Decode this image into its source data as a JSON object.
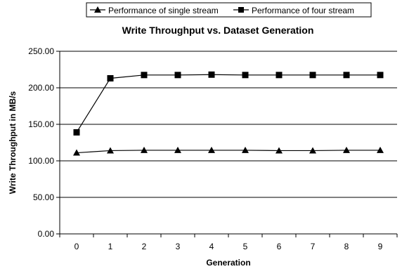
{
  "chart_data": {
    "type": "line",
    "title": "Write Throughput vs. Dataset Generation",
    "xlabel": "Generation",
    "ylabel": "Write Throughput in MB/s",
    "x": [
      0,
      1,
      2,
      3,
      4,
      5,
      6,
      7,
      8,
      9
    ],
    "x_tick_labels": [
      "0",
      "1",
      "2",
      "3",
      "4",
      "5",
      "6",
      "7",
      "8",
      "9"
    ],
    "ylim": [
      0,
      250
    ],
    "y_ticks": [
      0,
      50,
      100,
      150,
      200,
      250
    ],
    "y_tick_labels": [
      "0.00",
      "50.00",
      "100.00",
      "150.00",
      "200.00",
      "250.00"
    ],
    "grid": true,
    "legend_position": "top-center",
    "series": [
      {
        "name": "Performance of single stream",
        "marker": "triangle",
        "color": "#000000",
        "values": [
          111,
          114,
          114.5,
          114.5,
          114.5,
          114.5,
          114,
          114,
          114.5,
          114.5
        ]
      },
      {
        "name": "Performance of four stream",
        "marker": "square",
        "color": "#000000",
        "values": [
          139,
          213,
          217.5,
          217.5,
          218,
          217.5,
          217.5,
          217.5,
          217.5,
          217.5
        ]
      }
    ]
  }
}
